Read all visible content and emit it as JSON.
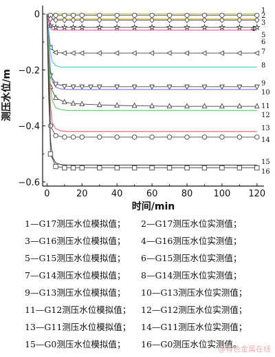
{
  "chart_data": {
    "type": "line",
    "xlabel": "时间/min",
    "ylabel": "测压水位/m",
    "xlim": [
      0,
      120
    ],
    "ylim": [
      -0.6,
      0
    ],
    "xticks": [
      "0",
      "20",
      "40",
      "60",
      "80",
      "100",
      "120"
    ],
    "yticks": [
      "0",
      "−0.2",
      "−0.4",
      "−0.6"
    ],
    "grid": false,
    "series": [
      {
        "label": "1",
        "color": "#b5b53a",
        "marker": "none",
        "final": 0.0,
        "x": [
          0,
          120
        ],
        "y": [
          0.0,
          0.0
        ]
      },
      {
        "label": "2",
        "color": "#444444",
        "marker": "circle",
        "final": -0.005,
        "x": [
          0,
          2,
          5,
          10,
          15,
          20,
          30,
          40,
          50,
          60,
          70,
          80,
          90,
          100,
          110,
          120
        ],
        "y": [
          -0.005,
          -0.005,
          -0.005,
          -0.005,
          -0.005,
          -0.005,
          -0.005,
          -0.005,
          -0.005,
          -0.005,
          -0.005,
          -0.005,
          -0.005,
          -0.005,
          -0.005,
          -0.005
        ]
      },
      {
        "label": "3",
        "color": "#e6b422",
        "marker": "none",
        "final": -0.018,
        "x": [
          0,
          120
        ],
        "y": [
          -0.018,
          -0.018
        ]
      },
      {
        "label": "4",
        "color": "#444444",
        "marker": "diamond",
        "final": -0.022,
        "x": [
          0,
          2,
          5,
          10,
          15,
          20,
          30,
          40,
          50,
          60,
          70,
          80,
          90,
          100,
          110,
          120
        ],
        "y": [
          -0.005,
          -0.018,
          -0.022,
          -0.022,
          -0.022,
          -0.022,
          -0.022,
          -0.022,
          -0.022,
          -0.022,
          -0.022,
          -0.022,
          -0.022,
          -0.022,
          -0.022,
          -0.022
        ]
      },
      {
        "label": "5",
        "color": "#444444",
        "marker": "star",
        "final": -0.048,
        "x": [
          0,
          2,
          5,
          10,
          15,
          20,
          30,
          40,
          50,
          60,
          70,
          80,
          90,
          100,
          110,
          120
        ],
        "y": [
          -0.01,
          -0.042,
          -0.048,
          -0.048,
          -0.048,
          -0.048,
          -0.048,
          -0.048,
          -0.048,
          -0.048,
          -0.048,
          -0.048,
          -0.048,
          -0.048,
          -0.048,
          -0.048
        ]
      },
      {
        "label": "6",
        "color": "#e0409a",
        "marker": "none",
        "final": -0.058,
        "x": [
          0,
          1,
          2,
          3,
          5,
          120
        ],
        "y": [
          0.0,
          -0.03,
          -0.05,
          -0.056,
          -0.058,
          -0.058
        ]
      },
      {
        "label": "7",
        "color": "#444444",
        "marker": "triangle-left",
        "final": -0.14,
        "x": [
          0,
          2,
          5,
          10,
          15,
          20,
          30,
          40,
          50,
          60,
          70,
          80,
          90,
          100,
          110,
          120
        ],
        "y": [
          -0.01,
          -0.12,
          -0.138,
          -0.14,
          -0.14,
          -0.14,
          -0.14,
          -0.14,
          -0.14,
          -0.14,
          -0.14,
          -0.14,
          -0.14,
          -0.14,
          -0.14,
          -0.14
        ]
      },
      {
        "label": "8",
        "color": "#3fc8e0",
        "marker": "none",
        "final": -0.19,
        "x": [
          0,
          1,
          2,
          3,
          5,
          8,
          120
        ],
        "y": [
          0.0,
          -0.08,
          -0.14,
          -0.17,
          -0.185,
          -0.19,
          -0.19
        ]
      },
      {
        "label": "9",
        "color": "#444444",
        "marker": "triangle-down",
        "final": -0.26,
        "x": [
          0,
          2,
          5,
          10,
          15,
          20,
          25,
          30,
          40,
          50,
          60,
          70,
          80,
          90,
          100,
          110,
          120
        ],
        "y": [
          -0.01,
          -0.22,
          -0.25,
          -0.258,
          -0.26,
          -0.26,
          -0.26,
          -0.26,
          -0.26,
          -0.26,
          -0.26,
          -0.26,
          -0.26,
          -0.26,
          -0.26,
          -0.26,
          -0.26
        ]
      },
      {
        "label": "10",
        "color": "#7a7ae0",
        "marker": "none",
        "final": -0.27,
        "x": [
          0,
          1,
          2,
          3,
          5,
          8,
          12,
          120
        ],
        "y": [
          0.0,
          -0.12,
          -0.2,
          -0.24,
          -0.262,
          -0.268,
          -0.27,
          -0.27
        ]
      },
      {
        "label": "11",
        "color": "#444444",
        "marker": "triangle",
        "final": -0.33,
        "x": [
          0,
          2,
          5,
          10,
          15,
          20,
          30,
          40,
          50,
          60,
          70,
          80,
          90,
          100,
          110,
          120
        ],
        "y": [
          -0.01,
          -0.26,
          -0.3,
          -0.315,
          -0.32,
          -0.322,
          -0.325,
          -0.327,
          -0.328,
          -0.329,
          -0.33,
          -0.33,
          -0.33,
          -0.33,
          -0.33,
          -0.33
        ]
      },
      {
        "label": "12",
        "color": "#55d05a",
        "marker": "none",
        "final": -0.345,
        "x": [
          0,
          1,
          2,
          3,
          5,
          8,
          12,
          120
        ],
        "y": [
          0.0,
          -0.15,
          -0.26,
          -0.31,
          -0.335,
          -0.342,
          -0.345,
          -0.345
        ]
      },
      {
        "label": "13",
        "color": "#e46060",
        "marker": "none",
        "final": -0.42,
        "x": [
          0,
          1,
          2,
          3,
          5,
          8,
          12,
          120
        ],
        "y": [
          0.0,
          -0.2,
          -0.33,
          -0.39,
          -0.41,
          -0.418,
          -0.42,
          -0.42
        ]
      },
      {
        "label": "14",
        "color": "#444444",
        "marker": "circle",
        "final": -0.44,
        "x": [
          0,
          2,
          5,
          10,
          15,
          20,
          30,
          40,
          50,
          60,
          70,
          80,
          90,
          100,
          110,
          120
        ],
        "y": [
          -0.01,
          -0.4,
          -0.435,
          -0.44,
          -0.44,
          -0.44,
          -0.44,
          -0.44,
          -0.44,
          -0.44,
          -0.44,
          -0.44,
          -0.44,
          -0.44,
          -0.44,
          -0.44
        ]
      },
      {
        "label": "15",
        "color": "#444444",
        "marker": "none",
        "final": -0.54,
        "x": [
          0,
          1,
          2,
          3,
          5,
          8,
          12,
          120
        ],
        "y": [
          0.0,
          -0.3,
          -0.45,
          -0.51,
          -0.532,
          -0.538,
          -0.54,
          -0.54
        ]
      },
      {
        "label": "16",
        "color": "#444444",
        "marker": "square",
        "final": -0.55,
        "x": [
          0,
          2,
          5,
          10,
          15,
          20,
          30,
          40,
          50,
          60,
          70,
          80,
          90,
          100,
          110,
          120
        ],
        "y": [
          -0.01,
          -0.5,
          -0.545,
          -0.55,
          -0.55,
          -0.55,
          -0.55,
          -0.55,
          -0.55,
          -0.55,
          -0.55,
          -0.55,
          -0.55,
          -0.55,
          -0.55,
          -0.55
        ]
      }
    ]
  },
  "legend": [
    [
      "1—G17测压水位模拟值；",
      "2—G17测压水位实测值；"
    ],
    [
      "3—G16测压水位模拟值；",
      "4—G16测压水位实测值；"
    ],
    [
      "5—G15测压水位模拟值；",
      "6—G15测压水位实测值；"
    ],
    [
      "7—G14测压水位模拟值；",
      "8—G14测压水位实测值；"
    ],
    [
      "9—G13测压水位模拟值；",
      "10—G13测压水位实测值；"
    ],
    [
      "11—G12测压水位模拟值；",
      "12—G12测压水位实测值；"
    ],
    [
      "13—G11测压水位模拟值；",
      "14—G11测压水位实测值；"
    ],
    [
      "15—G0测压水位模拟值；",
      "16—G0测压水位实测值。"
    ]
  ],
  "watermark": "@有色金属在线"
}
